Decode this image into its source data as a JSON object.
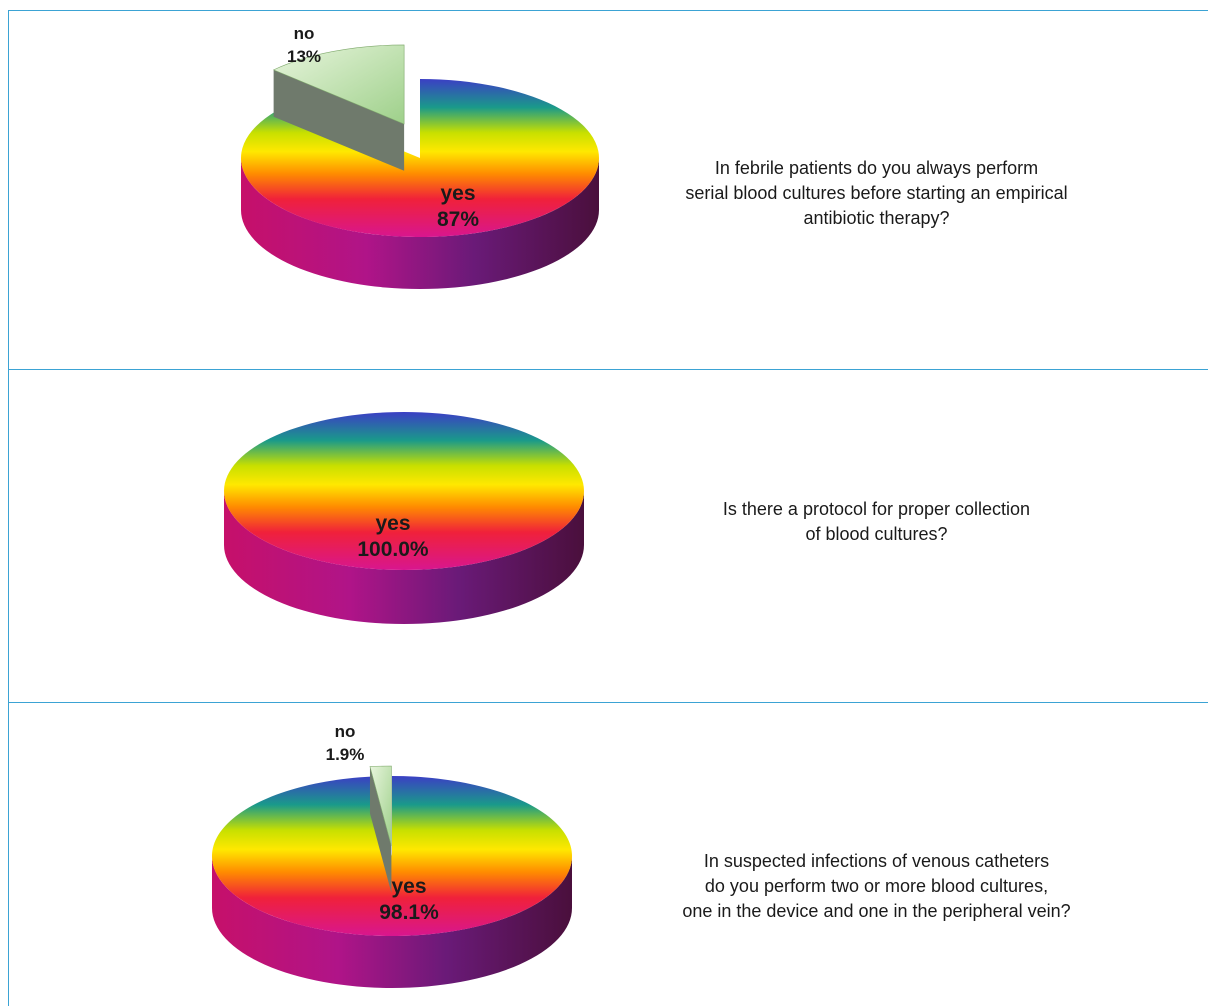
{
  "chart_data": [
    {
      "type": "pie",
      "question": [
        "In febrile patients do you always perform",
        "serial blood cultures before starting an empirical",
        "antibiotic therapy?"
      ],
      "slices": [
        {
          "name": "yes",
          "value_label": "87%",
          "value": 87,
          "color": "rainbow"
        },
        {
          "name": "no",
          "value_label": "13%",
          "value": 13,
          "color": "#9ed08a",
          "exploded": true
        }
      ]
    },
    {
      "type": "pie",
      "question": [
        "Is there a protocol for proper collection",
        "of blood cultures?"
      ],
      "slices": [
        {
          "name": "yes",
          "value_label": "100.0%",
          "value": 100.0,
          "color": "rainbow"
        }
      ]
    },
    {
      "type": "pie",
      "question": [
        "In suspected infections of venous catheters",
        "do you perform two or more blood cultures,",
        "one in the device and one in the peripheral vein?"
      ],
      "slices": [
        {
          "name": "yes",
          "value_label": "98.1%",
          "value": 98.1,
          "color": "rainbow"
        },
        {
          "name": "no",
          "value_label": "1.9%",
          "value": 1.9,
          "color": "#9ed08a",
          "exploded": true
        }
      ]
    }
  ],
  "colors": {
    "border": "#3ba3d4",
    "minor_slice": "#9ed08a",
    "minor_slice_side": "#6f7a6c",
    "text": "#1a1a1a"
  }
}
